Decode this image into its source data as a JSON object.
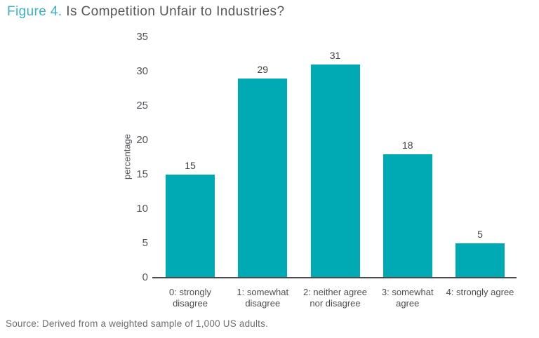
{
  "title": {
    "prefix": "Figure 4.",
    "text": " Is Competition Unfair to Industries?"
  },
  "source": "Source: Derived from a weighted sample of 1,000 US adults.",
  "colors": {
    "bar": "#00aab4",
    "title_prefix": "#38b2c3",
    "title_text": "#54565a",
    "axis_line": "#4b4b4d",
    "tick_label": "#55565b",
    "value_label": "#3f4042",
    "source_text": "#6c6d70"
  },
  "chart_data": {
    "type": "bar",
    "title": "Figure 4. Is Competition Unfair to Industries?",
    "categories": [
      "0: strongly\ndisagree",
      "1: somewhat\ndisagree",
      "2: neither agree\nnor disagree",
      "3: somewhat\nagree",
      "4: strongly agree"
    ],
    "values": [
      15,
      29,
      31,
      18,
      5
    ],
    "bar_labels": [
      "15",
      "29",
      "31",
      "18",
      "5"
    ],
    "xlabel": "",
    "ylabel": "percentage",
    "ylim": [
      0,
      35
    ],
    "yticks": [
      0,
      5,
      10,
      15,
      20,
      25,
      30,
      35
    ],
    "grid": false,
    "legend": null
  }
}
